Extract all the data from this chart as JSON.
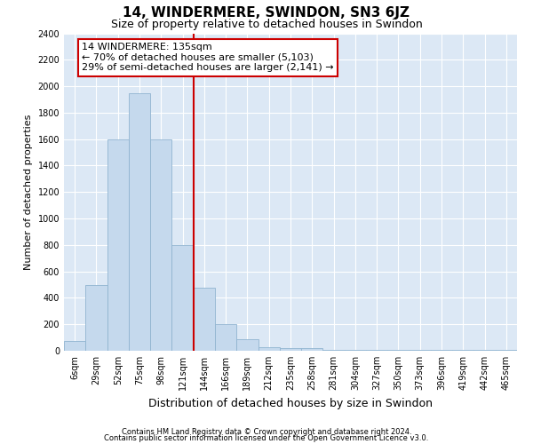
{
  "title": "14, WINDERMERE, SWINDON, SN3 6JZ",
  "subtitle": "Size of property relative to detached houses in Swindon",
  "xlabel": "Distribution of detached houses by size in Swindon",
  "ylabel": "Number of detached properties",
  "footnote1": "Contains HM Land Registry data © Crown copyright and database right 2024.",
  "footnote2": "Contains public sector information licensed under the Open Government Licence v3.0.",
  "categories": [
    "6sqm",
    "29sqm",
    "52sqm",
    "75sqm",
    "98sqm",
    "121sqm",
    "144sqm",
    "166sqm",
    "189sqm",
    "212sqm",
    "235sqm",
    "258sqm",
    "281sqm",
    "304sqm",
    "327sqm",
    "350sqm",
    "373sqm",
    "396sqm",
    "419sqm",
    "442sqm",
    "465sqm"
  ],
  "values": [
    75,
    500,
    1600,
    1950,
    1600,
    800,
    475,
    200,
    90,
    30,
    20,
    20,
    5,
    5,
    5,
    5,
    5,
    5,
    5,
    5,
    5
  ],
  "bar_color": "#c5d9ed",
  "bar_edge_color": "#90b4d0",
  "vline_x": 5.5,
  "vline_color": "#cc0000",
  "annotation_text": "14 WINDERMERE: 135sqm\n← 70% of detached houses are smaller (5,103)\n29% of semi-detached houses are larger (2,141) →",
  "annotation_box_color": "#ffffff",
  "annotation_box_edge": "#cc0000",
  "ylim": [
    0,
    2400
  ],
  "yticks": [
    0,
    200,
    400,
    600,
    800,
    1000,
    1200,
    1400,
    1600,
    1800,
    2000,
    2200,
    2400
  ],
  "plot_bg": "#dce8f5",
  "grid_color": "#ffffff",
  "title_fontsize": 11,
  "subtitle_fontsize": 9,
  "ylabel_fontsize": 8,
  "xlabel_fontsize": 9,
  "tick_fontsize": 7,
  "annotation_fontsize": 8,
  "footnote_fontsize": 6
}
